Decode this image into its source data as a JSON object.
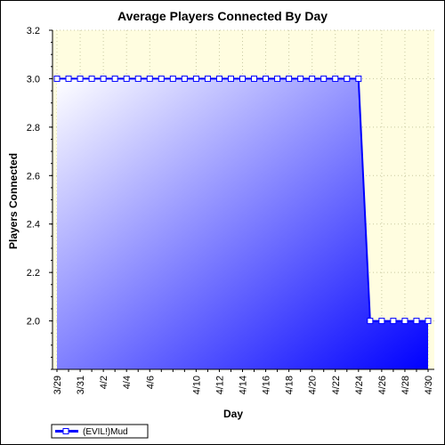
{
  "chart_data": {
    "type": "area",
    "title": "Average Players Connected By Day",
    "xlabel": "Day",
    "ylabel": "Players Connected",
    "ylim": [
      1.8,
      3.2
    ],
    "yticks": [
      "2.0",
      "2.2",
      "2.4",
      "2.6",
      "2.8",
      "3.0",
      "3.2"
    ],
    "ytick_values": [
      2.0,
      2.2,
      2.4,
      2.6,
      2.8,
      3.0,
      3.2
    ],
    "x": [
      "3/29",
      "3/30",
      "3/31",
      "4/1",
      "4/2",
      "4/3",
      "4/4",
      "4/5",
      "4/6",
      "4/7",
      "4/8",
      "4/9",
      "4/10",
      "4/11",
      "4/12",
      "4/13",
      "4/14",
      "4/15",
      "4/16",
      "4/17",
      "4/18",
      "4/19",
      "4/20",
      "4/21",
      "4/22",
      "4/23",
      "4/24",
      "4/25",
      "4/26",
      "4/27",
      "4/28",
      "4/29",
      "4/30"
    ],
    "xtick_labels": [
      "3/29",
      "3/31",
      "4/2",
      "4/4",
      "4/6",
      "4/10",
      "4/12",
      "4/14",
      "4/16",
      "4/18",
      "4/20",
      "4/22",
      "4/24",
      "4/26",
      "4/28",
      "4/30"
    ],
    "series": [
      {
        "name": "(EVIL!)Mud",
        "values": [
          3,
          3,
          3,
          3,
          3,
          3,
          3,
          3,
          3,
          3,
          3,
          3,
          3,
          3,
          3,
          3,
          3,
          3,
          3,
          3,
          3,
          3,
          3,
          3,
          3,
          3,
          3,
          2,
          2,
          2,
          2,
          2,
          2
        ]
      }
    ],
    "grid": true,
    "legend": "bottom-left",
    "colors": {
      "plot_background": "#fffde0",
      "area_light": "#ffffff",
      "area_dark": "#0000ff",
      "line": "#0000ff",
      "marker_fill": "#ffffff",
      "grid": "#c8c8a0"
    }
  }
}
